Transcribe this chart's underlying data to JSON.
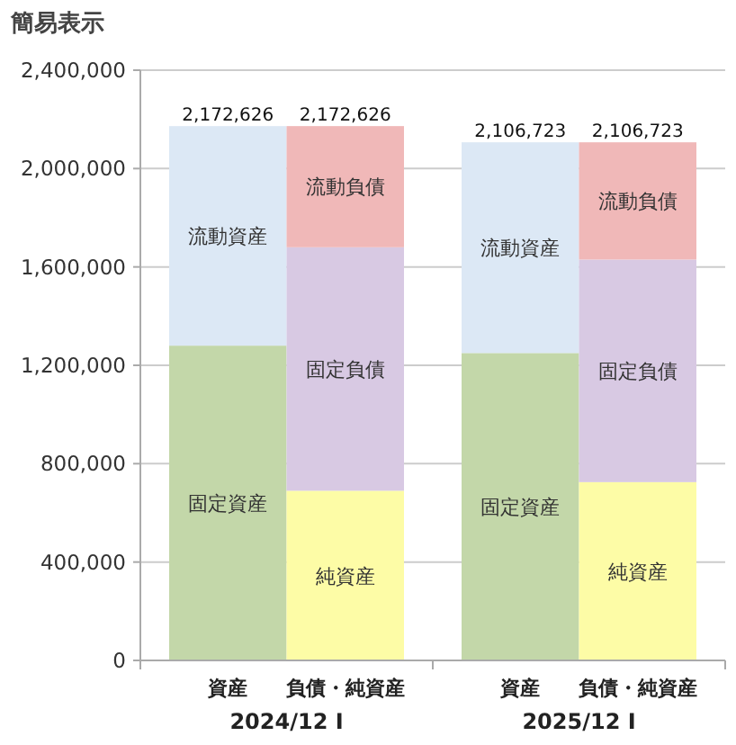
{
  "chart_data": [
    {
      "type": "bar",
      "title": "簡易表示",
      "stacked": true,
      "categories": [
        "資産",
        "負債・純資産"
      ],
      "xlabel": "2024/12 I",
      "ylim": [
        0,
        2400000
      ],
      "yticks": [
        {
          "value": 0,
          "label": "0"
        },
        {
          "value": 400000,
          "label": "400,000"
        },
        {
          "value": 800000,
          "label": "800,000"
        },
        {
          "value": 1200000,
          "label": "1,200,000"
        },
        {
          "value": 1600000,
          "label": "1,600,000"
        },
        {
          "value": 2000000,
          "label": "2,000,000"
        },
        {
          "value": 2400000,
          "label": "2,400,000"
        }
      ],
      "grid": "y",
      "legend": false,
      "series": [
        {
          "name": "固定資産",
          "color": "#c3d7a9",
          "values": [
            1280000,
            null
          ]
        },
        {
          "name": "流動資産",
          "color": "#dce8f5",
          "values": [
            892626,
            null
          ]
        },
        {
          "name": "純資産",
          "color": "#fdfca6",
          "values": [
            null,
            690000
          ]
        },
        {
          "name": "固定負債",
          "color": "#d8c9e3",
          "values": [
            null,
            990000
          ]
        },
        {
          "name": "流動負債",
          "color": "#f0b8b8",
          "values": [
            null,
            492626
          ]
        }
      ],
      "totals": [
        "2,172,626",
        "2,172,626"
      ]
    },
    {
      "type": "bar",
      "stacked": true,
      "categories": [
        "資産",
        "負債・純資産"
      ],
      "xlabel": "2025/12 I",
      "ylim": [
        0,
        2400000
      ],
      "yticks": [
        {
          "value": 0,
          "label": null
        },
        {
          "value": 400000,
          "label": null
        },
        {
          "value": 800000,
          "label": null
        },
        {
          "value": 1200000,
          "label": null
        },
        {
          "value": 1600000,
          "label": null
        },
        {
          "value": 2000000,
          "label": null
        },
        {
          "value": 2400000,
          "label": null
        }
      ],
      "grid": "y",
      "legend": false,
      "tick_labels": "x",
      "series": [
        {
          "name": "固定資産",
          "color": "#c3d7a9",
          "values": [
            1250000,
            null
          ]
        },
        {
          "name": "流動資産",
          "color": "#dce8f5",
          "values": [
            856723,
            null
          ]
        },
        {
          "name": "純資産",
          "color": "#fdfca6",
          "values": [
            null,
            725000
          ]
        },
        {
          "name": "固定負債",
          "color": "#d8c9e3",
          "values": [
            null,
            905000
          ]
        },
        {
          "name": "流動負債",
          "color": "#f0b8b8",
          "values": [
            null,
            476723
          ]
        }
      ],
      "totals": [
        "2,106,723",
        "2,106,723"
      ]
    }
  ]
}
